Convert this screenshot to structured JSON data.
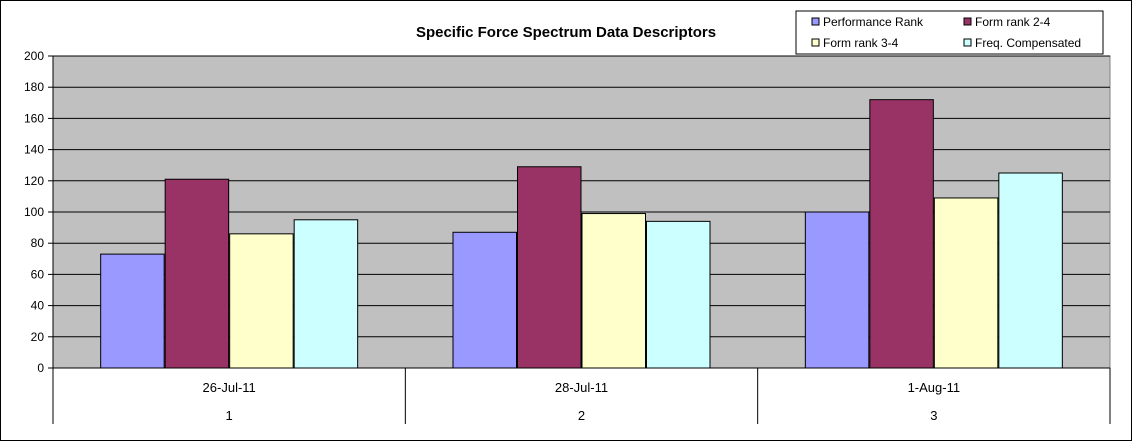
{
  "chart_data": {
    "type": "bar",
    "title": "Specific Force Spectrum Data Descriptors",
    "categories": [
      {
        "date": "26-Jul-11",
        "index": "1"
      },
      {
        "date": "28-Jul-11",
        "index": "2"
      },
      {
        "date": "1-Aug-11",
        "index": "3"
      }
    ],
    "series": [
      {
        "name": "Performance Rank",
        "color": "#9999ff",
        "values": [
          73,
          87,
          100
        ]
      },
      {
        "name": "Form rank 2-4",
        "color": "#993366",
        "values": [
          121,
          129,
          172
        ]
      },
      {
        "name": "Form rank 3-4",
        "color": "#ffffcc",
        "values": [
          86,
          99,
          109
        ]
      },
      {
        "name": "Freq. Compensated",
        "color": "#ccffff",
        "values": [
          95,
          94,
          125
        ]
      }
    ],
    "ylim": [
      0,
      200
    ],
    "yticks": [
      "0",
      "20",
      "40",
      "60",
      "80",
      "100",
      "120",
      "140",
      "160",
      "180",
      "200"
    ],
    "grid": true,
    "legend_position": "top-right",
    "plot_background": "#c0c0c0"
  }
}
